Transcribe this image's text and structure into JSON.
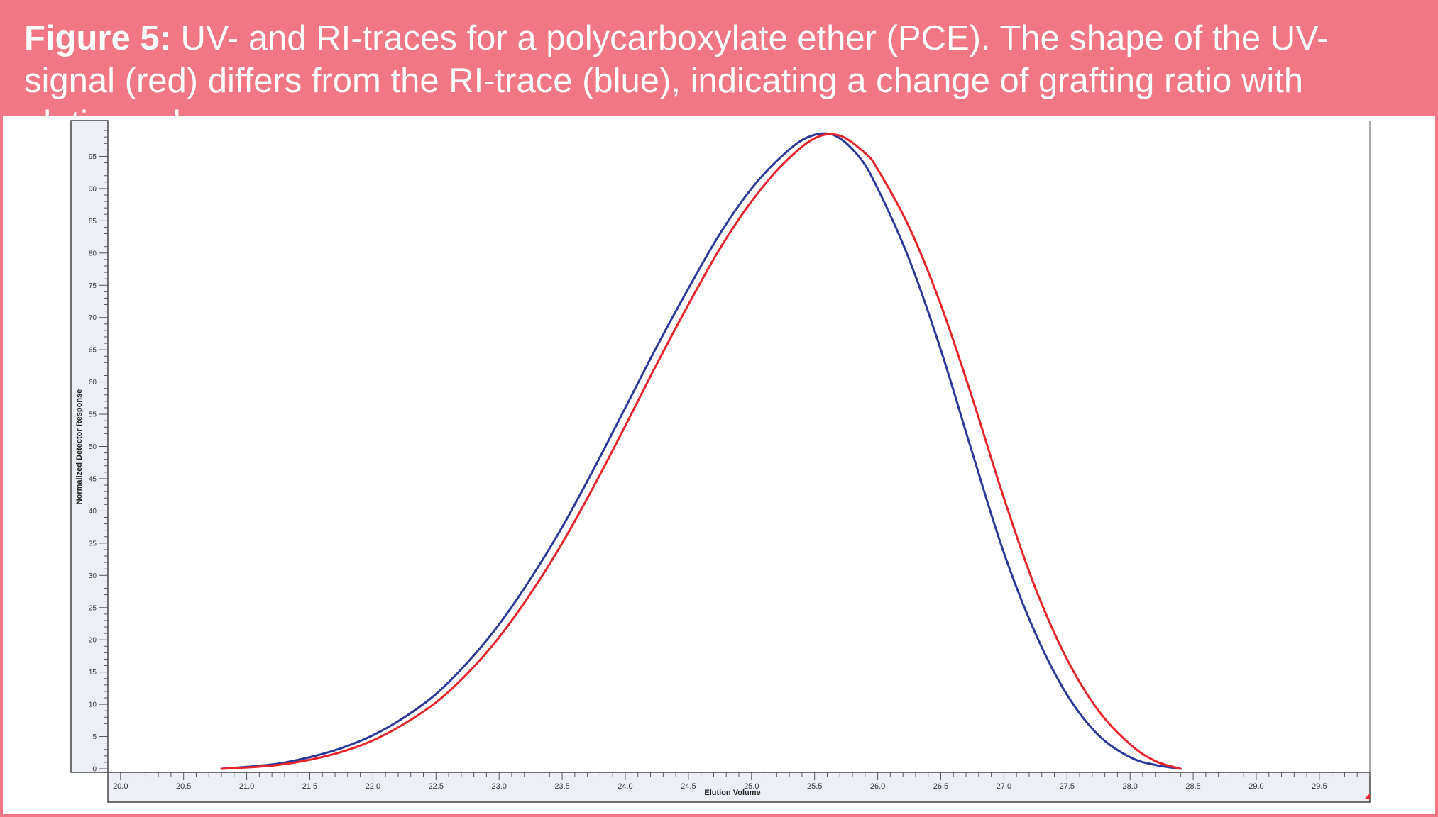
{
  "caption": {
    "lead": "Figure 5:",
    "text": " UV- and RI-traces for a polycarboxylate ether (PCE). The shape of the UV-signal (red) differs from the RI-trace (blue), indicating a change of grafting ratio with elution volume."
  },
  "chart_data": {
    "type": "line",
    "title": "",
    "xlabel": "Elution Volume",
    "ylabel": "Normalized Detector Response",
    "xlim": [
      19.9,
      29.9
    ],
    "ylim": [
      0,
      100
    ],
    "x_ticks": [
      "20.0",
      "20.5",
      "21.0",
      "21.5",
      "22.0",
      "22.5",
      "23.0",
      "23.5",
      "24.0",
      "24.5",
      "25.0",
      "25.5",
      "26.0",
      "26.5",
      "27.0",
      "27.5",
      "28.0",
      "28.5",
      "29.0",
      "29.5"
    ],
    "y_ticks": [
      "0",
      "5",
      "10",
      "15",
      "20",
      "25",
      "30",
      "35",
      "40",
      "45",
      "50",
      "55",
      "60",
      "65",
      "70",
      "75",
      "80",
      "85",
      "90",
      "95"
    ],
    "grid": false,
    "legend": "none",
    "series": [
      {
        "color": "#2b3a9a",
        "x": [
          20.8,
          21.0,
          21.25,
          21.5,
          21.75,
          22.0,
          22.25,
          22.5,
          22.75,
          23.0,
          23.25,
          23.5,
          23.75,
          24.0,
          24.25,
          24.5,
          24.75,
          25.0,
          25.25,
          25.45,
          25.65,
          25.85,
          26.0,
          26.25,
          26.5,
          26.75,
          27.0,
          27.25,
          27.5,
          27.75,
          28.0,
          28.2,
          28.4
        ],
        "y": [
          0,
          0.3,
          0.8,
          1.8,
          3.2,
          5.2,
          8.0,
          11.6,
          16.5,
          22.4,
          29.5,
          37.5,
          46.5,
          56.0,
          65.5,
          74.5,
          83.0,
          90.0,
          95.2,
          98.0,
          98.3,
          95.0,
          90.0,
          79.0,
          65.0,
          49.0,
          33.5,
          21.0,
          11.5,
          5.2,
          1.8,
          0.6,
          0
        ]
      },
      {
        "color": "#e8232a",
        "x": [
          20.8,
          21.0,
          21.25,
          21.5,
          21.75,
          22.0,
          22.25,
          22.5,
          22.75,
          23.0,
          23.25,
          23.5,
          23.75,
          24.0,
          24.25,
          24.5,
          24.75,
          25.0,
          25.25,
          25.5,
          25.7,
          25.9,
          26.0,
          26.25,
          26.5,
          26.75,
          27.0,
          27.25,
          27.5,
          27.75,
          28.0,
          28.2,
          28.4
        ],
        "y": [
          0,
          0.2,
          0.6,
          1.4,
          2.6,
          4.4,
          7.0,
          10.3,
          14.8,
          20.4,
          27.2,
          35.0,
          43.8,
          53.2,
          62.8,
          72.0,
          80.7,
          88.0,
          93.8,
          97.8,
          98.2,
          95.5,
          93.0,
          84.0,
          72.0,
          57.5,
          42.0,
          28.0,
          17.0,
          9.0,
          3.8,
          1.2,
          0
        ]
      }
    ]
  }
}
